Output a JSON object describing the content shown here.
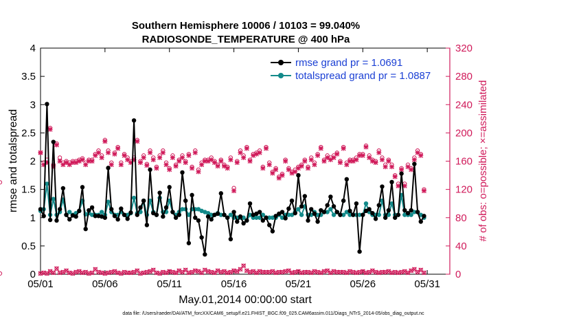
{
  "chart_data": {
    "type": "line",
    "title_line1": "Southern Hemisphere 10006 / 10103 = 99.040%",
    "title_line2": "RADIOSONDE_TEMPERATURE @ 400 hPa",
    "xlabel": "May.01,2014 00:00:00 start",
    "ylabel": "rmse and totalspread",
    "ylabel_right": "# of obs: o=possible; ×=assimilated",
    "footer": "data file: /Users/raeder/DAI/ATM_forcXX/CAM6_setup/f.e21.FHIST_BGC.f09_025.CAM6assim.011/Diags_NTrS_2014-05/obs_diag_output.nc",
    "xlim": [
      0,
      31.75
    ],
    "ylim": [
      0,
      4
    ],
    "ylim_right": [
      0,
      320
    ],
    "xticks": [
      0,
      5,
      10,
      15,
      20,
      25,
      30
    ],
    "xtick_labels": [
      "05/01",
      "05/06",
      "05/11",
      "05/16",
      "05/21",
      "05/26",
      "05/31"
    ],
    "yticks": [
      0,
      0.5,
      1,
      1.5,
      2,
      2.5,
      3,
      3.5,
      4
    ],
    "ytick_labels": [
      "0",
      "0.5",
      "1",
      "1.5",
      "2",
      "2.5",
      "3",
      "3.5",
      "4"
    ],
    "yticks_right": [
      0,
      40,
      80,
      120,
      160,
      200,
      240,
      280,
      320
    ],
    "ytick_labels_right": [
      "0",
      "40",
      "80",
      "120",
      "160",
      "200",
      "240",
      "280",
      "320"
    ],
    "colors": {
      "rmse": "#000000",
      "spread": "#138a8a",
      "obs": "#d01a5a",
      "legend_text": "#1a3fd4",
      "right_axis": "#d01a5a"
    },
    "legend": [
      "rmse grand pr = 1.0691",
      "totalspread grand pr = 1.0887"
    ],
    "rmse": [
      1.15,
      1.03,
      3.01,
      0.96,
      2.34,
      0.95,
      1.15,
      1.52,
      1.05,
      0.97,
      1.04,
      1.02,
      1.12,
      1.54,
      0.8,
      1.13,
      1.18,
      1.03,
      1.03,
      1.02,
      1.0,
      1.88,
      1.15,
      1.03,
      0.97,
      1.16,
      1.05,
      0.98,
      1.09,
      2.72,
      1.05,
      1.18,
      1.3,
      0.87,
      1.85,
      1.08,
      1.05,
      1.44,
      1.02,
      1.18,
      1.54,
      1.1,
      1.0,
      1.05,
      1.8,
      1.3,
      0.55,
      1.4,
      1.0,
      0.95,
      0.65,
      0.35,
      1.02,
      0.97,
      1.05,
      1.07,
      1.43,
      1.05,
      1.0,
      0.62,
      1.1,
      0.93,
      1.02,
      0.9,
      0.95,
      1.25,
      1.05,
      1.07,
      1.1,
      0.95,
      1.0,
      0.87,
      0.76,
      1.03,
      1.07,
      1.1,
      0.99,
      1.16,
      1.3,
      1.08,
      1.75,
      1.2,
      1.38,
      0.95,
      1.15,
      1.07,
      0.93,
      1.13,
      1.1,
      1.22,
      1.37,
      1.2,
      1.1,
      1.05,
      1.3,
      1.68,
      1.12,
      1.05,
      1.25,
      0.4,
      1.05,
      1.12,
      1.15,
      1.08,
      0.98,
      1.22,
      1.55,
      1.0,
      1.13,
      1.63,
      1.0,
      1.05,
      1.78,
      1.13,
      1.08,
      1.13,
      1.95,
      1.1,
      0.93,
      1.03
    ],
    "spread": [
      1.12,
      1.15,
      1.6,
      1.05,
      1.33,
      1.05,
      1.1,
      1.32,
      1.05,
      1.1,
      1.05,
      1.08,
      1.12,
      1.3,
      1.06,
      1.08,
      1.05,
      1.05,
      1.05,
      1.1,
      1.05,
      1.28,
      1.1,
      1.05,
      1.05,
      1.1,
      1.05,
      1.05,
      1.08,
      1.35,
      1.08,
      1.1,
      1.3,
      1.05,
      1.3,
      1.1,
      1.05,
      1.35,
      1.1,
      1.1,
      1.3,
      1.1,
      1.05,
      1.1,
      1.15,
      1.15,
      1.05,
      1.15,
      1.15,
      1.15,
      1.12,
      1.1,
      1.08,
      1.05,
      1.05,
      1.08,
      1.05,
      1.05,
      1.0,
      1.05,
      1.0,
      1.0,
      1.0,
      1.0,
      0.95,
      1.05,
      1.0,
      1.0,
      1.0,
      1.05,
      1.0,
      1.0,
      1.0,
      1.0,
      1.05,
      1.0,
      1.05,
      1.05,
      1.05,
      1.1,
      1.15,
      1.05,
      1.2,
      1.05,
      1.05,
      1.1,
      1.05,
      1.05,
      1.1,
      1.1,
      1.15,
      1.05,
      1.1,
      1.05,
      1.05,
      1.1,
      1.05,
      1.05,
      1.05,
      1.05,
      1.05,
      1.25,
      1.1,
      1.05,
      1.05,
      1.05,
      1.3,
      1.05,
      1.05,
      1.25,
      1.05,
      1.05,
      1.4,
      1.05,
      1.05,
      1.05,
      1.1,
      1.1,
      1.05,
      1.0
    ],
    "obs_possible": [
      172,
      158,
      162,
      207,
      155,
      185,
      165,
      158,
      160,
      158,
      160,
      160,
      162,
      164,
      158,
      162,
      162,
      170,
      175,
      168,
      190,
      175,
      158,
      172,
      180,
      158,
      170,
      165,
      160,
      165,
      190,
      160,
      168,
      156,
      175,
      165,
      152,
      168,
      175,
      158,
      150,
      168,
      155,
      162,
      168,
      160,
      170,
      152,
      175,
      148,
      158,
      162,
      162,
      165,
      160,
      155,
      162,
      155,
      152,
      165,
      122,
      160,
      175,
      168,
      180,
      162,
      170,
      172,
      175,
      152,
      180,
      158,
      145,
      150,
      138,
      142,
      162,
      150,
      145,
      148,
      152,
      155,
      162,
      152,
      165,
      158,
      170,
      180,
      162,
      168,
      165,
      168,
      172,
      160,
      180,
      158,
      162,
      162,
      165,
      170,
      170,
      182,
      168,
      162,
      160,
      175,
      165,
      155,
      162,
      155,
      140,
      128,
      150,
      128,
      155,
      150,
      165,
      175,
      170,
      120,
      130
    ],
    "obs_assim": [
      172,
      155,
      158,
      205,
      153,
      183,
      160,
      155,
      158,
      155,
      158,
      158,
      160,
      162,
      155,
      160,
      160,
      168,
      172,
      165,
      188,
      172,
      155,
      170,
      178,
      155,
      168,
      162,
      158,
      162,
      188,
      158,
      165,
      154,
      172,
      162,
      150,
      165,
      172,
      155,
      148,
      165,
      153,
      160,
      165,
      158,
      168,
      150,
      172,
      145,
      155,
      160,
      160,
      162,
      158,
      153,
      160,
      153,
      150,
      162,
      118,
      158,
      172,
      165,
      178,
      160,
      168,
      170,
      172,
      150,
      178,
      155,
      143,
      148,
      136,
      140,
      160,
      148,
      143,
      145,
      150,
      153,
      160,
      150,
      162,
      155,
      168,
      178,
      160,
      165,
      162,
      165,
      170,
      158,
      178,
      155,
      160,
      160,
      162,
      168,
      168,
      180,
      165,
      160,
      158,
      172,
      162,
      152,
      160,
      152,
      138,
      125,
      148,
      125,
      152,
      148,
      162,
      172,
      168,
      118,
      125
    ],
    "rejected": [
      1,
      2,
      1,
      4,
      2,
      8,
      2,
      3,
      5,
      2,
      1,
      3,
      4,
      2,
      3,
      1,
      2,
      7,
      3,
      2,
      1,
      2,
      3,
      4,
      2,
      1,
      3,
      2,
      2,
      3,
      5,
      1,
      2,
      3,
      4,
      6,
      2,
      1,
      3,
      2,
      4,
      3,
      2,
      5,
      3,
      6,
      2,
      3,
      5,
      4,
      2,
      6,
      4,
      3,
      2,
      5,
      3,
      4,
      2,
      3,
      5,
      4,
      7,
      12,
      5,
      3,
      4,
      2,
      4,
      3,
      3,
      3,
      4,
      2,
      3,
      3,
      4,
      5,
      2,
      3,
      4,
      2,
      3,
      3,
      2,
      4,
      3,
      2,
      4,
      5,
      2,
      4,
      3,
      3,
      3,
      2,
      4,
      3,
      2,
      3,
      4,
      2,
      3,
      5,
      3,
      2,
      3,
      3,
      4,
      2,
      3,
      2,
      3,
      4,
      2,
      5,
      7,
      3,
      6,
      2,
      1
    ]
  }
}
